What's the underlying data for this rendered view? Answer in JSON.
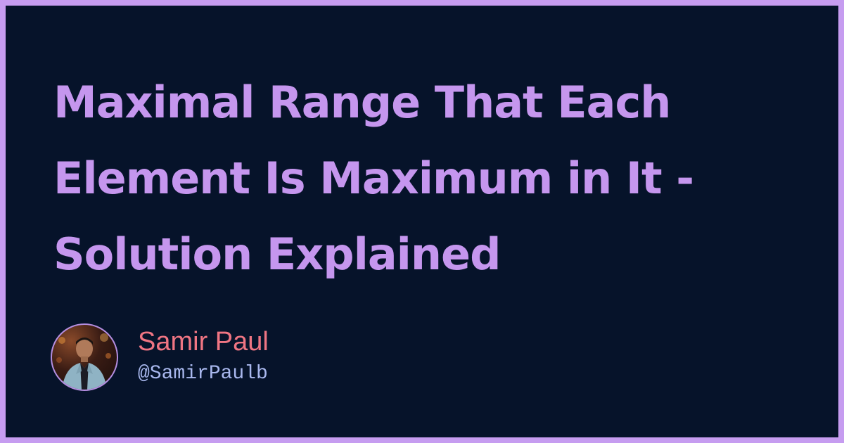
{
  "card": {
    "title": "Maximal Range That Each Element Is Maximum in It - Solution Explained"
  },
  "author": {
    "name": "Samir Paul",
    "handle": "@SamirPaulb",
    "avatar_icon": "person-photo-avatar"
  },
  "colors": {
    "frame": "#c69cf0",
    "background": "#06132a",
    "title": "#c596ee",
    "author_name": "#ef7583",
    "author_handle": "#a9b8ee"
  }
}
